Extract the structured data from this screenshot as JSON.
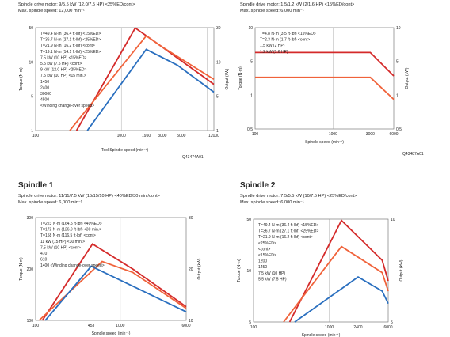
{
  "colors": {
    "blue": "#2a6fbf",
    "red": "#d42a2a",
    "orange": "#f0623a",
    "pink": "#f4a088",
    "grid": "#9a9a9a",
    "frame": "#666666"
  },
  "panels": [
    {
      "key": "tool",
      "title": "",
      "motor": "Spindle drive motor: 9/5.5 kW (12.0/7.5 HP) <25%ED/cont>",
      "max_speed": "Max. spindle speed: 12,000 min⁻¹",
      "y_left_label": "Torque (N·m)",
      "y_right_label": "Output (kW)",
      "x_label": "Tool Spindle speed (min⁻¹)",
      "code": "Q43474A01",
      "left_ticks": [
        "50",
        "10",
        "5",
        "1"
      ],
      "right_ticks": [
        "30",
        "10",
        "5",
        "1"
      ],
      "x_ticks": [
        "100",
        "1000",
        "1950",
        "3000",
        "5000",
        "12000"
      ],
      "annotations": [
        "T=49.4 N·m (36.4 ft·lbf) <15%ED>",
        "T=36.7 N·m (27.1 ft·lbf) <25%ED>",
        "T=21.9 N·m (16.2 ft·lbf) <cont>",
        "T=19.1 N·m (14.1 ft·lbf) <25%ED>",
        "7.5 kW (10 HP) <15%ED>",
        "5.5 kW (7.5 HP) <cont>",
        "9 kW (12.0 HP) <25%ED>",
        "7.5 kW (10 HP) <15 min.>",
        "1450",
        "2400",
        "30000",
        "4500",
        "<Winding change-over speed>"
      ]
    },
    {
      "key": "mill",
      "title": "",
      "motor": "Spindle drive motor: 1.5/1.2 kW (2/1.6 HP) <15%ED/cont>",
      "max_speed": "Max. spindle speed: 6,000 min⁻¹",
      "y_left_label": "Torque (N·m)",
      "y_right_label": "Output (kW)",
      "x_label": "Spindle speed (min⁻¹)",
      "code": "Q43487A01",
      "left_ticks": [
        "10",
        "5",
        "1",
        "0.5"
      ],
      "right_ticks": [
        "10",
        "5",
        "1",
        "0.5"
      ],
      "x_ticks": [
        "100",
        "1000",
        "3000",
        "6000"
      ],
      "annotations": [
        "T=4.8 N·m (3.5 ft·lbf) <15%ED>",
        "T=2.3 N·m (1.7 ft·lbf) <cont>",
        "1.5 kW (2 HP)",
        "1.2 kW (1.6 HP)"
      ]
    },
    {
      "key": "sp1",
      "title": "Spindle 1",
      "motor": "Spindle drive motor: 11/11/7.5 kW (15/15/10 HP) <40%ED/30 min./cont>",
      "max_speed": "Max. spindle speed: 6,000 min⁻¹",
      "y_left_label": "Torque (N·m)",
      "y_right_label": "Output (kW)",
      "x_label": "Spindle speed (min⁻¹)",
      "code": "",
      "left_ticks": [
        "300",
        "200",
        "100"
      ],
      "right_ticks": [
        "30",
        "20",
        "10"
      ],
      "x_ticks": [
        "100",
        "453",
        "1000",
        "6000"
      ],
      "annotations": [
        "T=223 N·m (164.5 ft·lbf) <40%ED>",
        "T=172 N·m (126.9 ft·lbf) <30 min.>",
        "T=158 N·m (116.5 ft·lbf) <cont>",
        "11 kW (15 HP) <30 min.>",
        "7.5 kW (10 HP) <cont>",
        "470",
        "610",
        "1400 <Winding change-over speed>"
      ]
    },
    {
      "key": "sp2",
      "title": "Spindle 2",
      "motor": "Spindle drive motor: 7.5/5.5 kW (10/7.5 HP) <25%ED/cont>",
      "max_speed": "Max. spindle speed: 6,000 min⁻¹",
      "y_left_label": "Torque (N·m)",
      "y_right_label": "Output (kW)",
      "x_label": "Spindle speed (min⁻¹)",
      "code": "",
      "left_ticks": [
        "50",
        "10",
        "5"
      ],
      "right_ticks": [
        "10",
        "5"
      ],
      "x_ticks": [
        "100",
        "1000",
        "2400",
        "6000"
      ],
      "annotations": [
        "T=49.4 N·m (36.4 ft·lbf) <15%ED>",
        "T=36.7 N·m (27.1 ft·lbf) <25%ED>",
        "T=21.9 N·m (16.2 ft·lbf) <cont>",
        "<25%ED>",
        "<cont>",
        "<15%ED>",
        "1200",
        "1450",
        "7.5 kW (10 HP)",
        "5.5 kW (7.5 HP)"
      ]
    }
  ],
  "chart_data": [
    {
      "type": "line",
      "title": "",
      "xscale": "log",
      "yscale": "log",
      "x_range": [
        100,
        12000
      ],
      "y_range": [
        1,
        50
      ],
      "series": [
        {
          "name": "<15%ED>",
          "x": [
            300,
            1450,
            2400,
            12000
          ],
          "y": [
            1,
            49.4,
            30,
            5.8
          ]
        },
        {
          "name": "<25%ED>",
          "x": [
            250,
            1950,
            3000,
            12000
          ],
          "y": [
            1,
            36.7,
            24,
            7
          ]
        },
        {
          "name": "<cont>",
          "x": [
            400,
            1950,
            4500,
            12000
          ],
          "y": [
            1,
            21.9,
            12,
            4.3
          ]
        }
      ]
    },
    {
      "type": "line",
      "title": "",
      "xscale": "log",
      "yscale": "log",
      "x_range": [
        100,
        6000
      ],
      "y_range": [
        0.5,
        10
      ],
      "series": [
        {
          "name": "<15%ED>",
          "x": [
            100,
            3000,
            6000
          ],
          "y": [
            4.8,
            4.8,
            2.4
          ]
        },
        {
          "name": "<cont>",
          "x": [
            100,
            3000,
            6000
          ],
          "y": [
            2.3,
            2.3,
            1.2
          ]
        }
      ]
    },
    {
      "type": "line",
      "title": "Spindle 1",
      "xscale": "log",
      "yscale": "linear",
      "x_range": [
        100,
        6000
      ],
      "y_range": [
        0,
        300
      ],
      "series": [
        {
          "name": "<40%ED>",
          "x": [
            120,
            470,
            1400,
            6000
          ],
          "y": [
            0,
            223,
            150,
            40
          ]
        },
        {
          "name": "<30 min.>",
          "x": [
            110,
            610,
            1400,
            6000
          ],
          "y": [
            0,
            172,
            140,
            35
          ]
        },
        {
          "name": "<cont>",
          "x": [
            130,
            453,
            1400,
            6000
          ],
          "y": [
            0,
            158,
            100,
            25
          ]
        }
      ]
    },
    {
      "type": "line",
      "title": "Spindle 2",
      "xscale": "log",
      "yscale": "linear",
      "x_range": [
        100,
        6000
      ],
      "y_range": [
        0,
        50
      ],
      "series": [
        {
          "name": "<15%ED>",
          "x": [
            300,
            1450,
            5000,
            6000
          ],
          "y": [
            0,
            49.4,
            30,
            20
          ]
        },
        {
          "name": "<25%ED>",
          "x": [
            250,
            1450,
            5000,
            6000
          ],
          "y": [
            0,
            36.7,
            24,
            15
          ]
        },
        {
          "name": "<cont>",
          "x": [
            350,
            2400,
            5000,
            6000
          ],
          "y": [
            0,
            21.9,
            15,
            9
          ]
        }
      ]
    }
  ]
}
